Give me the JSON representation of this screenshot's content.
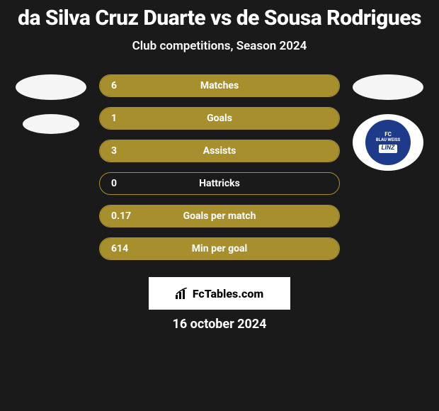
{
  "title": "da Silva Cruz Duarte vs de Sousa Rodrigues",
  "subtitle": "Club competitions, Season 2024",
  "stats": [
    {
      "value": "6",
      "label": "Matches",
      "fill_pct": 100,
      "fill_color": "#a88f2e"
    },
    {
      "value": "1",
      "label": "Goals",
      "fill_pct": 100,
      "fill_color": "#a88f2e"
    },
    {
      "value": "3",
      "label": "Assists",
      "fill_pct": 100,
      "fill_color": "#a88f2e"
    },
    {
      "value": "0",
      "label": "Hattricks",
      "fill_pct": 0,
      "fill_color": "#a88f2e"
    },
    {
      "value": "0.17",
      "label": "Goals per match",
      "fill_pct": 100,
      "fill_color": "#a88f2e"
    },
    {
      "value": "614",
      "label": "Min per goal",
      "fill_pct": 100,
      "fill_color": "#a88f2e"
    }
  ],
  "pill_border_color": "#a88f2e",
  "background_color": "#1a1a1a",
  "club_logo": {
    "fc": "FC",
    "bw": "BLAU WEISS",
    "city": "LINZ",
    "bg_color": "#1e3a8a"
  },
  "footer": {
    "brand": "FcTables.com",
    "date": "16 october 2024"
  }
}
